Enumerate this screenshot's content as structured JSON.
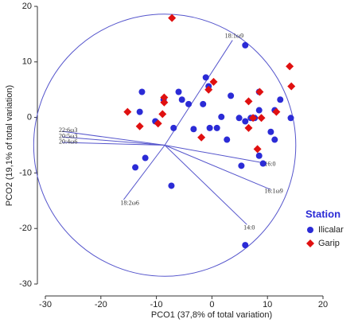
{
  "chart_data": {
    "type": "scatter",
    "x_label": "PCO1 (37,8% of total variation)",
    "y_label": "PCO2 (19,1% of total variation)",
    "xlim": [
      -30,
      20
    ],
    "ylim": [
      -30,
      20
    ],
    "xticks": [
      -30,
      -20,
      -10,
      0,
      10,
      20
    ],
    "yticks": [
      -30,
      -20,
      -10,
      0,
      10,
      20
    ],
    "legend_title": "Station",
    "legend_position": "lower right",
    "circle_center": [
      -8.5,
      -5
    ],
    "circle_radius": 23.6,
    "vector_origin": [
      -8.5,
      -5
    ],
    "vectors": [
      {
        "name": "18:1ω9",
        "x": 3.7,
        "y": 13.9
      },
      {
        "name": "22:6ω3",
        "x": -27,
        "y": -2.5
      },
      {
        "name": "20:5ω3",
        "x": -27,
        "y": -3.5
      },
      {
        "name": "20:4ω6",
        "x": -27,
        "y": -4.5
      },
      {
        "name": "16:0",
        "x": 9.9,
        "y": -8.3
      },
      {
        "name": "16:1ω9",
        "x": 10.6,
        "y": -13
      },
      {
        "name": "14:0",
        "x": 6.3,
        "y": -19.3
      },
      {
        "name": "18:2ω6",
        "x": -15.9,
        "y": -14.8
      }
    ],
    "series": [
      {
        "name": "Ilicalar",
        "color": "#2b2bd6",
        "marker": "circle",
        "x": [
          6,
          -12.6,
          -6,
          -5.4,
          -8.7,
          -1.1,
          -0.6,
          3.4,
          -1.6,
          -4.2,
          8.5,
          12.3,
          14.2,
          11.3,
          8.5,
          7,
          4.9,
          6,
          7.7,
          1.7,
          0.9,
          -0.4,
          2.7,
          -10.2,
          -6.9,
          -13,
          10.6,
          11.3,
          8.5,
          9.2,
          5.3,
          -12,
          -13.8,
          -7.3,
          6,
          -3.3
        ],
        "values": [
          13,
          4.6,
          4.6,
          3.2,
          3.2,
          7.2,
          5.6,
          3.9,
          2.4,
          2.4,
          4.6,
          3.2,
          -0.1,
          1.3,
          1.3,
          -0.1,
          -0.1,
          -0.7,
          -0.1,
          0.1,
          -1.9,
          -1.9,
          -4,
          -0.7,
          -1.9,
          1,
          -2.6,
          -4,
          -6.9,
          -8.3,
          -8.7,
          -7.3,
          -9,
          -12.3,
          -23,
          -2.1
        ]
      },
      {
        "name": "Garip",
        "color": "#e01010",
        "marker": "diamond",
        "x": [
          -7.2,
          14,
          14.3,
          8.6,
          6.6,
          0.3,
          -0.6,
          -8.6,
          -8.6,
          -15.2,
          -13,
          -9.7,
          -8.9,
          6.6,
          7.4,
          8.9,
          11.6,
          -1.9,
          8.2
        ],
        "values": [
          17.9,
          9.2,
          5.6,
          4.6,
          2.9,
          6.4,
          5,
          3.6,
          2.7,
          1,
          -1.6,
          -1.1,
          0.6,
          -1.9,
          -0.1,
          -0.1,
          1,
          -3.6,
          -5.7
        ]
      }
    ]
  }
}
